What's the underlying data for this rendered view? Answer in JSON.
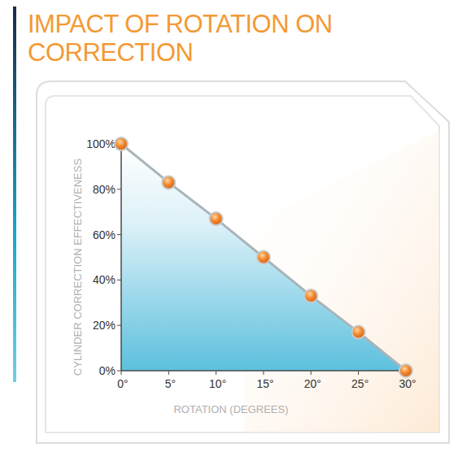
{
  "chart_data": {
    "type": "area",
    "title": "IMPACT OF ROTATION ON CORRECTION",
    "x_label": "ROTATION (DEGREES)",
    "y_label": "CYLINDER CORRECTION EFFECTIVENESS",
    "x": [
      0,
      5,
      10,
      15,
      20,
      25,
      30
    ],
    "values": [
      100,
      83,
      67,
      50,
      33,
      17,
      0
    ],
    "color": "#5cc0de",
    "marker": "circle",
    "grid": false,
    "xlim": [
      0,
      30
    ],
    "xticks": [
      {
        "value": 0,
        "label": "0°"
      },
      {
        "value": 5,
        "label": "5°"
      },
      {
        "value": 10,
        "label": "10°"
      },
      {
        "value": 15,
        "label": "15°"
      },
      {
        "value": 20,
        "label": "20°"
      },
      {
        "value": 25,
        "label": "25°"
      },
      {
        "value": 30,
        "label": "30°"
      }
    ],
    "ylim": [
      0,
      100
    ],
    "yticks": [
      {
        "value": 0,
        "label": "0%"
      },
      {
        "value": 20,
        "label": "20%"
      },
      {
        "value": 40,
        "label": "40%"
      },
      {
        "value": 60,
        "label": "60%"
      },
      {
        "value": 80,
        "label": "80%"
      },
      {
        "value": 100,
        "label": "100%"
      }
    ]
  }
}
